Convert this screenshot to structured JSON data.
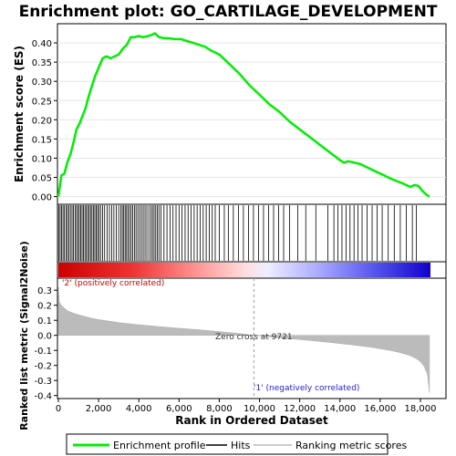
{
  "chart_data": {
    "type": "line",
    "title": "Enrichment plot: GO_CARTILAGE_DEVELOPMENT",
    "xlabel": "Rank in Ordered Dataset",
    "ylabel_top": "Enrichment score (ES)",
    "ylabel_bottom": "Ranked list metric (Signal2Noise)",
    "xlim": [
      0,
      18500
    ],
    "es_ylim": [
      -0.02,
      0.45
    ],
    "metric_ylim": [
      -0.42,
      0.38
    ],
    "x_ticks": [
      0,
      2000,
      4000,
      6000,
      8000,
      10000,
      12000,
      14000,
      16000,
      18000
    ],
    "x_tick_labels": [
      "0",
      "2,000",
      "4,000",
      "6,000",
      "8,000",
      "10,000",
      "12,000",
      "14,000",
      "16,000",
      "18,000"
    ],
    "es_ticks": [
      0.0,
      0.05,
      0.1,
      0.15,
      0.2,
      0.25,
      0.3,
      0.35,
      0.4
    ],
    "es_tick_labels": [
      "0.00",
      "0.05",
      "0.10",
      "0.15",
      "0.20",
      "0.25",
      "0.30",
      "0.35",
      "0.40"
    ],
    "metric_ticks": [
      0.3,
      0.2,
      0.1,
      0.0,
      -0.1,
      -0.2,
      -0.3,
      -0.4
    ],
    "metric_tick_labels": [
      "0.3",
      "0.2",
      "0.1",
      "0.0",
      "-0.1",
      "-0.2",
      "-0.3",
      "-0.4"
    ],
    "zero_cross": 9721,
    "zero_cross_label": "Zero cross at 9721",
    "pos_label": "'2' (positively correlated)",
    "neg_label": "'1' (negatively correlated)",
    "series": [
      {
        "name": "Enrichment profile",
        "color": "#00ee00",
        "x": [
          0,
          150,
          300,
          450,
          600,
          750,
          900,
          1050,
          1200,
          1350,
          1500,
          1650,
          1800,
          2000,
          2200,
          2400,
          2600,
          2800,
          3000,
          3200,
          3400,
          3600,
          3800,
          4000,
          4200,
          4400,
          4600,
          4800,
          5000,
          5200,
          5500,
          5800,
          6100,
          6400,
          6700,
          7000,
          7300,
          7600,
          8000,
          8500,
          9000,
          9500,
          10000,
          10500,
          11000,
          11500,
          12000,
          12500,
          13000,
          13500,
          14000,
          14200,
          14400,
          14600,
          15000,
          15400,
          15800,
          16200,
          16600,
          17000,
          17300,
          17500,
          17700,
          17900,
          18100,
          18300,
          18450
        ],
        "y": [
          0.0,
          0.055,
          0.06,
          0.09,
          0.11,
          0.14,
          0.175,
          0.19,
          0.21,
          0.23,
          0.26,
          0.285,
          0.31,
          0.335,
          0.36,
          0.365,
          0.36,
          0.365,
          0.37,
          0.385,
          0.395,
          0.415,
          0.415,
          0.418,
          0.415,
          0.417,
          0.42,
          0.425,
          0.415,
          0.413,
          0.412,
          0.41,
          0.41,
          0.405,
          0.4,
          0.395,
          0.39,
          0.38,
          0.37,
          0.345,
          0.32,
          0.29,
          0.265,
          0.24,
          0.22,
          0.195,
          0.175,
          0.155,
          0.135,
          0.115,
          0.095,
          0.088,
          0.092,
          0.09,
          0.085,
          0.075,
          0.065,
          0.055,
          0.045,
          0.037,
          0.03,
          0.025,
          0.03,
          0.028,
          0.015,
          0.005,
          0.0
        ]
      }
    ],
    "hits": [
      20,
      90,
      160,
      230,
      300,
      380,
      450,
      520,
      600,
      680,
      750,
      830,
      900,
      970,
      1040,
      1110,
      1180,
      1250,
      1320,
      1390,
      1460,
      1530,
      1600,
      1670,
      1740,
      1810,
      1880,
      1950,
      2020,
      2100,
      2200,
      2300,
      2420,
      2540,
      2650,
      2760,
      2880,
      3000,
      3100,
      3180,
      3250,
      3320,
      3390,
      3460,
      3540,
      3620,
      3700,
      3780,
      3860,
      3950,
      4040,
      4130,
      4220,
      4310,
      4400,
      4500,
      4600,
      4680,
      4760,
      4840,
      4920,
      5000,
      5100,
      5250,
      5400,
      5550,
      5700,
      5850,
      6000,
      6150,
      6300,
      6450,
      6600,
      6750,
      6900,
      7050,
      7200,
      7350,
      7500,
      7650,
      7800,
      8000,
      8250,
      8450,
      8700,
      8950,
      9200,
      9450,
      9700,
      9950,
      10200,
      10450,
      10700,
      10950,
      11200,
      11500,
      11900,
      12300,
      12800,
      13400,
      13700,
      13900,
      14100,
      14300,
      14500,
      14700,
      14900,
      15100,
      15350,
      15600,
      15850,
      16100,
      16400,
      16700,
      17000,
      17300,
      17600,
      17800
    ],
    "metric": {
      "x": [
        0,
        50,
        150,
        300,
        500,
        800,
        1200,
        1600,
        2000,
        3000,
        4000,
        5000,
        6000,
        7000,
        8000,
        9000,
        9721,
        10500,
        11500,
        12500,
        13500,
        14500,
        15500,
        16500,
        17000,
        17500,
        17800,
        18000,
        18200,
        18350,
        18450
      ],
      "y": [
        0.32,
        0.22,
        0.2,
        0.18,
        0.16,
        0.145,
        0.13,
        0.115,
        0.105,
        0.085,
        0.07,
        0.058,
        0.047,
        0.037,
        0.025,
        0.012,
        0.0,
        -0.01,
        -0.022,
        -0.034,
        -0.047,
        -0.062,
        -0.078,
        -0.1,
        -0.115,
        -0.135,
        -0.155,
        -0.175,
        -0.21,
        -0.26,
        -0.38
      ]
    }
  },
  "legend": {
    "enrichment": "Enrichment profile",
    "hits": "Hits",
    "ranking": "Ranking metric scores"
  }
}
